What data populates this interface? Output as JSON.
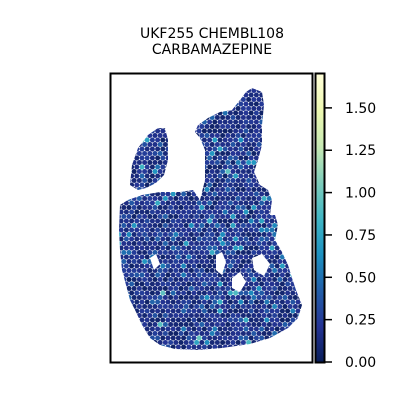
{
  "chart_data": {
    "type": "scatter",
    "title_line1": "UKF255 CHEMBL108",
    "title_line2": "CARBAMAZEPINE",
    "xlabel": "",
    "ylabel": "",
    "grid": false,
    "colorbar": {
      "cmap": "YlGnBu",
      "vmin": 0.0,
      "vmax": 1.7,
      "ticks": [
        {
          "value": 0.0,
          "label": "0.00"
        },
        {
          "value": 0.25,
          "label": "0.25"
        },
        {
          "value": 0.5,
          "label": "0.50"
        },
        {
          "value": 0.75,
          "label": "0.75"
        },
        {
          "value": 1.0,
          "label": "1.00"
        },
        {
          "value": 1.25,
          "label": "1.25"
        },
        {
          "value": 1.5,
          "label": "1.50"
        }
      ]
    },
    "data_summary": {
      "typical_value_range": [
        0.1,
        0.4
      ],
      "sparse_highlights_range": [
        0.5,
        0.9
      ],
      "max_observed": 1.0
    }
  }
}
